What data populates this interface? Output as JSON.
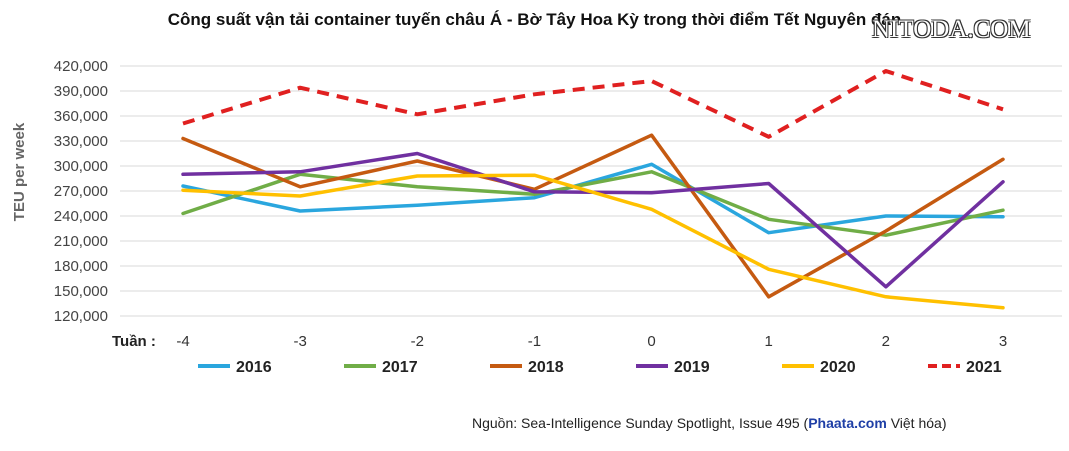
{
  "chart_data": {
    "type": "line",
    "title": "Công suất vận tải container tuyến châu Á - Bờ Tây Hoa Kỳ trong thời điểm Tết Nguyên đán",
    "xlabel": "Tuần  :",
    "ylabel": "TEU per week",
    "x": [
      "-4",
      "-3",
      "-2",
      "-1",
      "0",
      "1",
      "2",
      "3"
    ],
    "ylim": [
      120000,
      420000
    ],
    "yticks": [
      "120,000",
      "150,000",
      "180,000",
      "210,000",
      "240,000",
      "270,000",
      "300,000",
      "330,000",
      "360,000",
      "390,000",
      "420,000"
    ],
    "grid": true,
    "legend_position": "bottom",
    "series": [
      {
        "name": "2016",
        "color": "#2aa6de",
        "dashed": false,
        "values": [
          276000,
          246000,
          253000,
          262000,
          302000,
          220000,
          240000,
          239000
        ]
      },
      {
        "name": "2017",
        "color": "#70ad47",
        "dashed": false,
        "values": [
          243000,
          290000,
          275000,
          266000,
          293000,
          236000,
          217000,
          247000
        ]
      },
      {
        "name": "2018",
        "color": "#c55a11",
        "dashed": false,
        "values": [
          333000,
          275000,
          306000,
          272000,
          337000,
          143000,
          222000,
          308000
        ]
      },
      {
        "name": "2019",
        "color": "#7030a0",
        "dashed": false,
        "values": [
          290000,
          293000,
          315000,
          269000,
          268000,
          279000,
          155000,
          281000
        ]
      },
      {
        "name": "2020",
        "color": "#ffc000",
        "dashed": false,
        "values": [
          271000,
          264000,
          288000,
          289000,
          248000,
          176000,
          143000,
          130000
        ]
      },
      {
        "name": "2021",
        "color": "#e02020",
        "dashed": true,
        "values": [
          351000,
          394000,
          362000,
          386000,
          402000,
          335000,
          414000,
          368000
        ]
      }
    ]
  },
  "source": {
    "prefix": "Nguồn: Sea-Intelligence Sunday Spotlight, Issue 495 (",
    "brand": "Phaata.com",
    "suffix": " Việt hóa)"
  },
  "watermark": "NITODA.COM"
}
